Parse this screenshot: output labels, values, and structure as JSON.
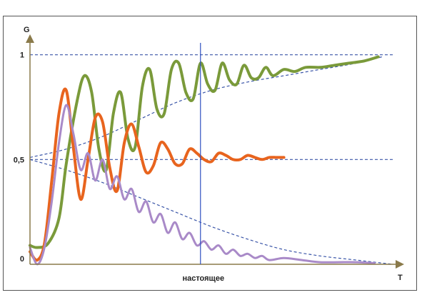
{
  "chart_data": {
    "type": "line",
    "title": "",
    "xlabel": "T",
    "ylabel": "G",
    "ylim": [
      0,
      1.05
    ],
    "xlim": [
      0,
      100
    ],
    "y_ticks": [
      {
        "value": 0,
        "label": "0"
      },
      {
        "value": 0.5,
        "label": "0,5"
      },
      {
        "value": 1,
        "label": "1"
      }
    ],
    "x_marker": {
      "value": 47,
      "label": "настоящее"
    },
    "grid": false,
    "reference_lines": [
      {
        "name": "upper-bound",
        "y": 1.0,
        "style": "dashed"
      },
      {
        "name": "midline",
        "y": 0.5,
        "style": "dashed"
      }
    ],
    "trend_lines": [
      {
        "name": "upper-trend",
        "x": [
          0,
          10,
          20,
          30,
          40,
          50,
          60,
          70,
          80,
          90,
          97
        ],
        "y": [
          0.51,
          0.55,
          0.61,
          0.69,
          0.77,
          0.83,
          0.87,
          0.9,
          0.93,
          0.96,
          0.99
        ]
      },
      {
        "name": "lower-trend",
        "x": [
          0,
          10,
          20,
          30,
          40,
          50,
          60,
          70,
          80,
          90,
          100
        ],
        "y": [
          0.5,
          0.45,
          0.39,
          0.32,
          0.25,
          0.18,
          0.12,
          0.07,
          0.04,
          0.02,
          0.0
        ]
      }
    ],
    "series": [
      {
        "color": "#7a9a3a",
        "width": 4,
        "x": [
          0,
          2,
          5,
          8,
          10,
          13,
          15,
          17,
          19,
          21,
          23,
          25,
          27,
          29,
          31,
          33,
          35,
          37,
          39,
          41,
          43,
          45,
          47,
          49,
          51,
          53,
          55,
          57,
          59,
          61,
          63,
          65,
          67,
          70,
          73,
          76,
          80,
          84,
          88,
          92,
          96
        ],
        "y": [
          0.09,
          0.08,
          0.1,
          0.22,
          0.48,
          0.78,
          0.9,
          0.82,
          0.55,
          0.45,
          0.72,
          0.82,
          0.6,
          0.56,
          0.85,
          0.93,
          0.74,
          0.72,
          0.93,
          0.96,
          0.82,
          0.79,
          0.96,
          0.86,
          0.83,
          0.96,
          0.88,
          0.86,
          0.95,
          0.89,
          0.89,
          0.94,
          0.9,
          0.93,
          0.92,
          0.94,
          0.94,
          0.95,
          0.96,
          0.97,
          0.99
        ]
      },
      {
        "color": "#e8641e",
        "width": 4,
        "x": [
          0,
          2,
          4,
          6,
          8,
          10,
          12,
          14,
          16,
          18,
          20,
          22,
          24,
          26,
          28,
          30,
          32,
          34,
          36,
          38,
          40,
          42,
          44,
          46,
          48,
          50,
          52,
          54,
          56,
          58,
          60,
          62,
          64,
          66,
          68,
          70
        ],
        "y": [
          0.06,
          0.02,
          0.1,
          0.4,
          0.72,
          0.83,
          0.55,
          0.31,
          0.5,
          0.7,
          0.68,
          0.46,
          0.35,
          0.58,
          0.67,
          0.56,
          0.44,
          0.47,
          0.58,
          0.55,
          0.48,
          0.48,
          0.55,
          0.53,
          0.5,
          0.49,
          0.53,
          0.52,
          0.5,
          0.5,
          0.52,
          0.51,
          0.5,
          0.51,
          0.51,
          0.51
        ]
      },
      {
        "color": "#a98ac8",
        "width": 3,
        "x": [
          0,
          2,
          4,
          6,
          8,
          10,
          12,
          14,
          16,
          18,
          20,
          22,
          24,
          26,
          28,
          30,
          32,
          34,
          36,
          38,
          40,
          42,
          44,
          46,
          48,
          50,
          52,
          54,
          56,
          58,
          60,
          62,
          64,
          66,
          70,
          75,
          80,
          85,
          90,
          95
        ],
        "y": [
          0.08,
          0.0,
          0.08,
          0.3,
          0.58,
          0.76,
          0.62,
          0.45,
          0.53,
          0.4,
          0.5,
          0.36,
          0.42,
          0.31,
          0.36,
          0.25,
          0.3,
          0.2,
          0.24,
          0.15,
          0.2,
          0.12,
          0.15,
          0.09,
          0.11,
          0.07,
          0.09,
          0.05,
          0.07,
          0.04,
          0.05,
          0.03,
          0.04,
          0.02,
          0.03,
          0.02,
          0.01,
          0.01,
          0.01,
          0.005
        ]
      }
    ]
  },
  "colors": {
    "axis": "#8a7a4a",
    "reference": "#3a55a8",
    "marker": "#3050c0",
    "frame": "#555555"
  }
}
